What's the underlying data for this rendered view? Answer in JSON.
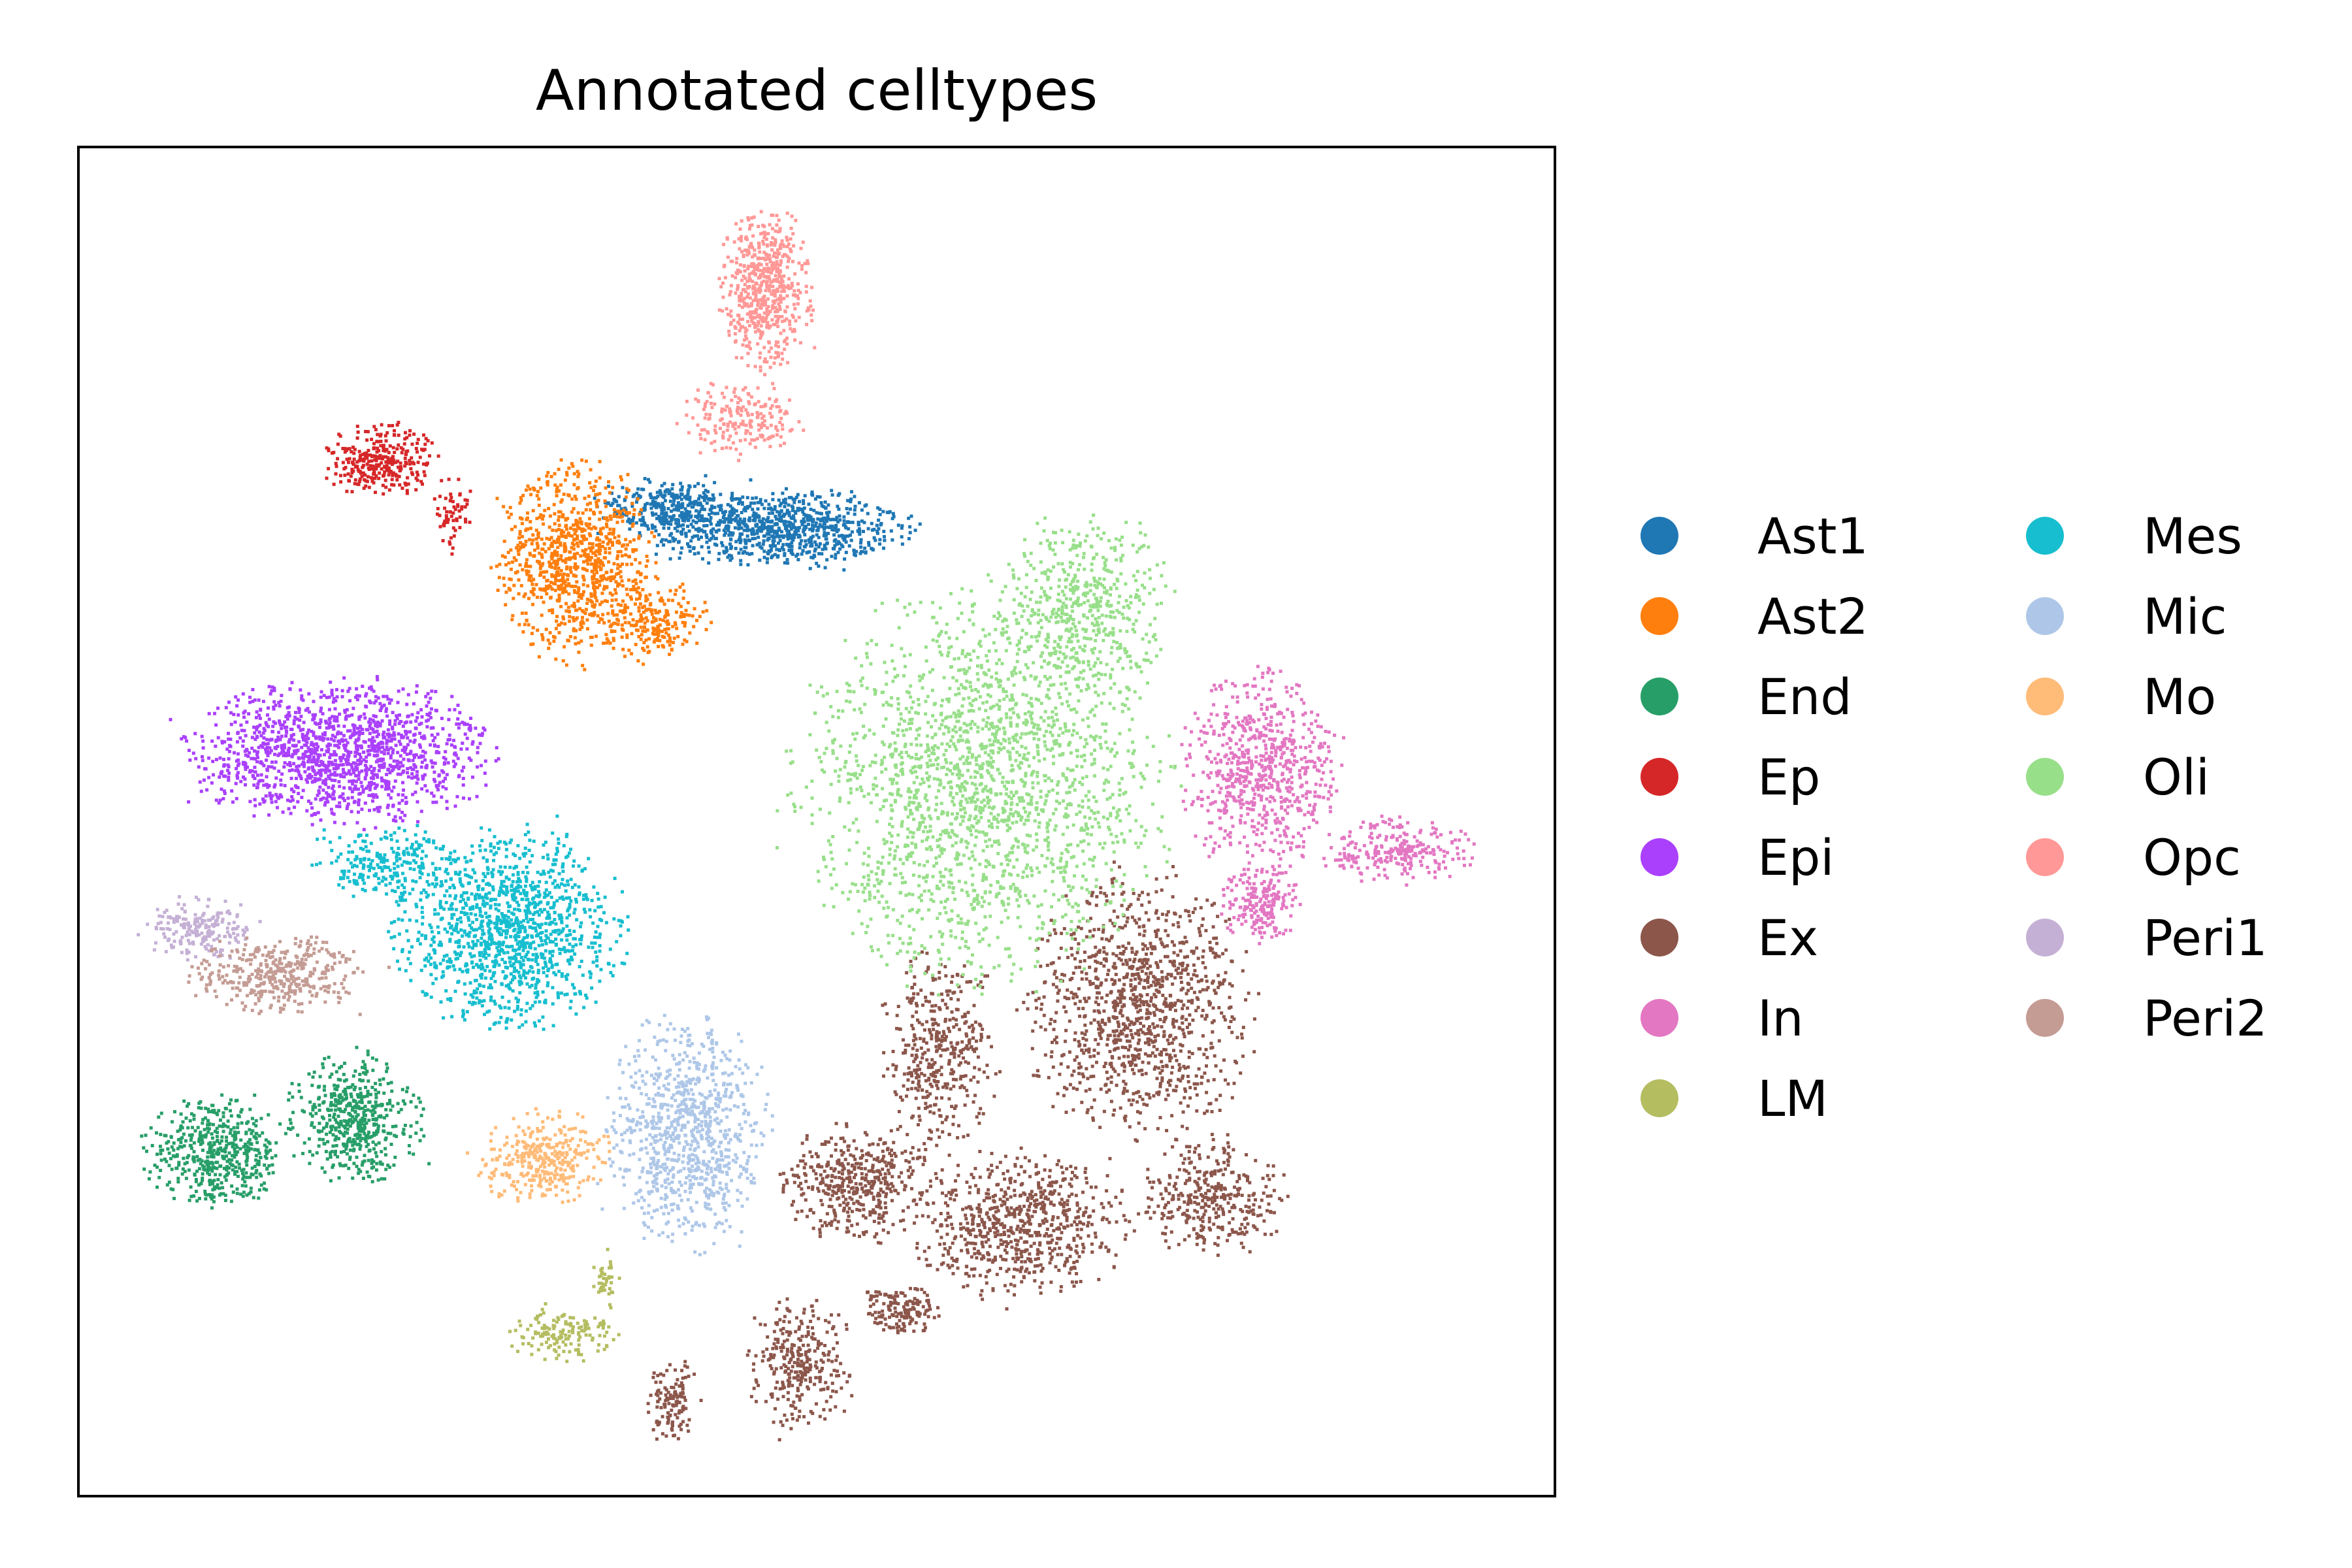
{
  "chart_data": {
    "type": "scatter",
    "title": "Annotated celltypes",
    "xlabel": "",
    "ylabel": "",
    "grid": false,
    "ticks": false,
    "legend_position": "right",
    "legend_columns": 2,
    "series": [
      {
        "name": "Ast1",
        "color": "#1f77b4",
        "clusters": [
          {
            "cx": 1180,
            "cy": 805,
            "rx": 210,
            "ry": 60,
            "n": 900
          },
          {
            "cx": 1020,
            "cy": 770,
            "rx": 110,
            "ry": 40,
            "n": 250
          }
        ]
      },
      {
        "name": "Ast2",
        "color": "#ff7f0e",
        "clusters": [
          {
            "cx": 880,
            "cy": 860,
            "rx": 120,
            "ry": 150,
            "n": 900
          },
          {
            "cx": 1000,
            "cy": 950,
            "rx": 90,
            "ry": 60,
            "n": 200
          }
        ]
      },
      {
        "name": "End",
        "color": "#279e68",
        "clusters": [
          {
            "cx": 540,
            "cy": 1710,
            "rx": 100,
            "ry": 100,
            "n": 500
          },
          {
            "cx": 330,
            "cy": 1760,
            "rx": 110,
            "ry": 80,
            "n": 500
          }
        ]
      },
      {
        "name": "Ep",
        "color": "#d62728",
        "clusters": [
          {
            "cx": 580,
            "cy": 705,
            "rx": 85,
            "ry": 55,
            "n": 300
          },
          {
            "cx": 690,
            "cy": 780,
            "rx": 30,
            "ry": 60,
            "n": 60
          }
        ]
      },
      {
        "name": "Epi",
        "color": "#aa40fc",
        "clusters": [
          {
            "cx": 520,
            "cy": 1150,
            "rx": 230,
            "ry": 110,
            "n": 1400
          }
        ]
      },
      {
        "name": "Ex",
        "color": "#8c564b",
        "clusters": [
          {
            "cx": 1740,
            "cy": 1540,
            "rx": 170,
            "ry": 200,
            "n": 1100
          },
          {
            "cx": 1560,
            "cy": 1870,
            "rx": 160,
            "ry": 110,
            "n": 700
          },
          {
            "cx": 1310,
            "cy": 1810,
            "rx": 110,
            "ry": 90,
            "n": 450
          },
          {
            "cx": 1440,
            "cy": 1610,
            "rx": 90,
            "ry": 150,
            "n": 400
          },
          {
            "cx": 1850,
            "cy": 1830,
            "rx": 110,
            "ry": 90,
            "n": 350
          },
          {
            "cx": 1220,
            "cy": 2080,
            "rx": 80,
            "ry": 100,
            "n": 300
          },
          {
            "cx": 1030,
            "cy": 2140,
            "rx": 40,
            "ry": 60,
            "n": 120
          },
          {
            "cx": 1380,
            "cy": 2000,
            "rx": 60,
            "ry": 40,
            "n": 150
          }
        ]
      },
      {
        "name": "In",
        "color": "#e377c2",
        "clusters": [
          {
            "cx": 1930,
            "cy": 1180,
            "rx": 120,
            "ry": 150,
            "n": 700
          },
          {
            "cx": 1930,
            "cy": 1380,
            "rx": 60,
            "ry": 60,
            "n": 200
          },
          {
            "cx": 2140,
            "cy": 1300,
            "rx": 120,
            "ry": 50,
            "n": 250
          }
        ]
      },
      {
        "name": "LM",
        "color": "#b5bd61",
        "clusters": [
          {
            "cx": 860,
            "cy": 2040,
            "rx": 80,
            "ry": 40,
            "n": 150
          },
          {
            "cx": 925,
            "cy": 1960,
            "rx": 20,
            "ry": 40,
            "n": 40
          }
        ]
      },
      {
        "name": "Mes",
        "color": "#17becf",
        "clusters": [
          {
            "cx": 780,
            "cy": 1420,
            "rx": 170,
            "ry": 150,
            "n": 1200
          },
          {
            "cx": 590,
            "cy": 1320,
            "rx": 120,
            "ry": 60,
            "n": 250
          }
        ]
      },
      {
        "name": "Mic",
        "color": "#aec7e8",
        "clusters": [
          {
            "cx": 1050,
            "cy": 1730,
            "rx": 120,
            "ry": 180,
            "n": 900
          }
        ]
      },
      {
        "name": "Mo",
        "color": "#ffbb78",
        "clusters": [
          {
            "cx": 830,
            "cy": 1770,
            "rx": 100,
            "ry": 70,
            "n": 350
          }
        ]
      },
      {
        "name": "Oli",
        "color": "#98df8a",
        "clusters": [
          {
            "cx": 1500,
            "cy": 1200,
            "rx": 280,
            "ry": 300,
            "n": 2000
          },
          {
            "cx": 1660,
            "cy": 930,
            "rx": 130,
            "ry": 150,
            "n": 500
          }
        ]
      },
      {
        "name": "Opc",
        "color": "#ff9896",
        "clusters": [
          {
            "cx": 1170,
            "cy": 440,
            "rx": 70,
            "ry": 120,
            "n": 600
          },
          {
            "cx": 1130,
            "cy": 640,
            "rx": 90,
            "ry": 60,
            "n": 200
          }
        ]
      },
      {
        "name": "Peri1",
        "color": "#c5b0d5",
        "clusters": [
          {
            "cx": 300,
            "cy": 1420,
            "rx": 90,
            "ry": 50,
            "n": 200
          }
        ]
      },
      {
        "name": "Peri2",
        "color": "#c49c94",
        "clusters": [
          {
            "cx": 420,
            "cy": 1490,
            "rx": 130,
            "ry": 60,
            "n": 400
          }
        ]
      }
    ]
  }
}
